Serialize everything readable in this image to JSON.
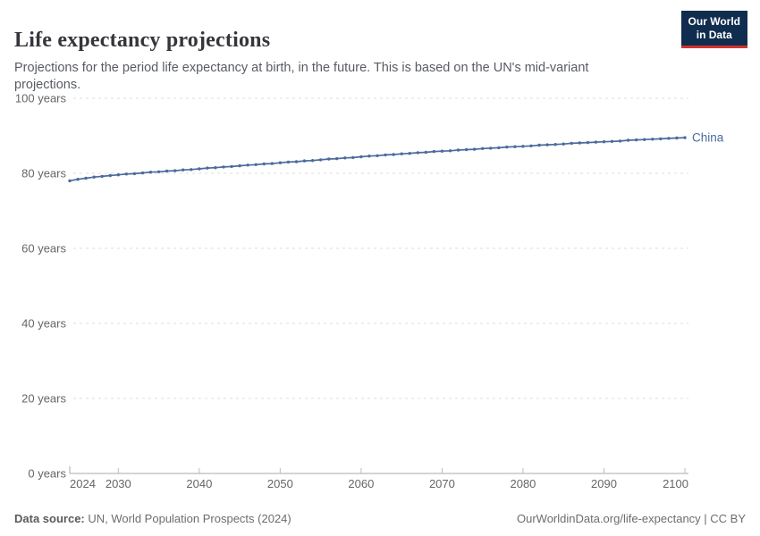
{
  "logo": {
    "line1": "Our World",
    "line2": "in Data",
    "bg_color": "#102d4f",
    "accent_color": "#d0342c"
  },
  "chart_data": {
    "type": "line",
    "title": "Life expectancy projections",
    "subtitle": "Projections for the period life expectancy at birth, in the future. This is based on the UN's mid-variant projections.",
    "xlabel": "",
    "ylabel": "",
    "ylim": [
      0,
      100
    ],
    "x_range": [
      2024,
      2100
    ],
    "grid": "horizontal-dashed",
    "legend_position": "line-end",
    "yticks": [
      {
        "value": 0,
        "label": "0 years"
      },
      {
        "value": 20,
        "label": "20 years"
      },
      {
        "value": 40,
        "label": "40 years"
      },
      {
        "value": 60,
        "label": "60 years"
      },
      {
        "value": 80,
        "label": "80 years"
      },
      {
        "value": 100,
        "label": "100 years"
      }
    ],
    "xticks": [
      {
        "value": 2024,
        "label": "2024"
      },
      {
        "value": 2030,
        "label": "2030"
      },
      {
        "value": 2040,
        "label": "2040"
      },
      {
        "value": 2050,
        "label": "2050"
      },
      {
        "value": 2060,
        "label": "2060"
      },
      {
        "value": 2070,
        "label": "2070"
      },
      {
        "value": 2080,
        "label": "2080"
      },
      {
        "value": 2090,
        "label": "2090"
      },
      {
        "value": 2100,
        "label": "2100"
      }
    ],
    "series": [
      {
        "name": "China",
        "color": "#4c6a9c",
        "years": [
          2024,
          2025,
          2026,
          2027,
          2028,
          2029,
          2030,
          2031,
          2032,
          2033,
          2034,
          2035,
          2036,
          2037,
          2038,
          2039,
          2040,
          2041,
          2042,
          2043,
          2044,
          2045,
          2046,
          2047,
          2048,
          2049,
          2050,
          2051,
          2052,
          2053,
          2054,
          2055,
          2056,
          2057,
          2058,
          2059,
          2060,
          2061,
          2062,
          2063,
          2064,
          2065,
          2066,
          2067,
          2068,
          2069,
          2070,
          2071,
          2072,
          2073,
          2074,
          2075,
          2076,
          2077,
          2078,
          2079,
          2080,
          2081,
          2082,
          2083,
          2084,
          2085,
          2086,
          2087,
          2088,
          2089,
          2090,
          2091,
          2092,
          2093,
          2094,
          2095,
          2096,
          2097,
          2098,
          2099,
          2100
        ],
        "values": [
          78.0,
          78.4,
          78.7,
          79.0,
          79.2,
          79.4,
          79.6,
          79.8,
          79.9,
          80.1,
          80.3,
          80.4,
          80.6,
          80.7,
          80.9,
          81.0,
          81.2,
          81.4,
          81.5,
          81.7,
          81.8,
          82.0,
          82.2,
          82.3,
          82.5,
          82.6,
          82.8,
          83.0,
          83.1,
          83.3,
          83.4,
          83.6,
          83.8,
          83.9,
          84.1,
          84.2,
          84.4,
          84.6,
          84.7,
          84.9,
          85.0,
          85.2,
          85.3,
          85.5,
          85.6,
          85.8,
          85.9,
          86.0,
          86.2,
          86.3,
          86.4,
          86.6,
          86.7,
          86.8,
          87.0,
          87.1,
          87.2,
          87.3,
          87.5,
          87.6,
          87.7,
          87.8,
          88.0,
          88.1,
          88.2,
          88.3,
          88.4,
          88.5,
          88.6,
          88.8,
          88.9,
          89.0,
          89.1,
          89.2,
          89.3,
          89.4,
          89.5
        ]
      }
    ]
  },
  "footer": {
    "source_label": "Data source:",
    "source_value": " UN, World Population Prospects (2024)",
    "right_text": "OurWorldinData.org/life-expectancy | CC BY"
  }
}
